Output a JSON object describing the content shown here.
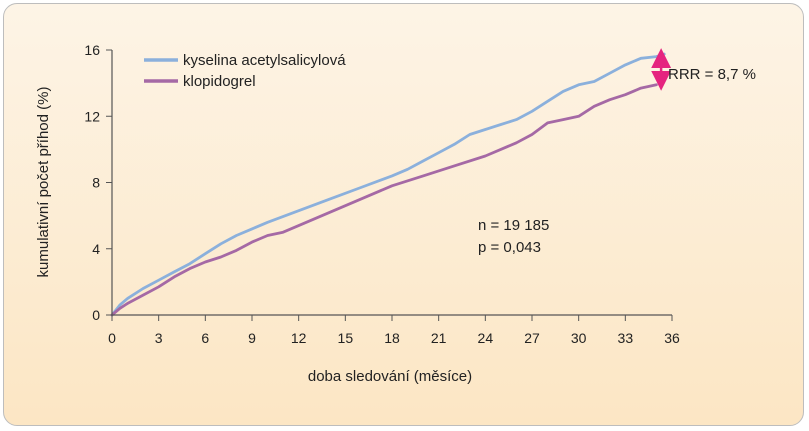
{
  "chart_data": {
    "type": "line",
    "xlabel": "doba sledování (měsíce)",
    "ylabel": "kumulativní počet příhod (%)",
    "xlim": [
      0,
      36
    ],
    "ylim": [
      0,
      16
    ],
    "xticks": [
      0,
      3,
      6,
      9,
      12,
      15,
      18,
      21,
      24,
      27,
      30,
      33,
      36
    ],
    "yticks": [
      0,
      4,
      8,
      12,
      16
    ],
    "legend_position": "top-left",
    "series": [
      {
        "name": "kyselina acetylsalicylová",
        "color": "#8bb0dc",
        "points": [
          [
            0,
            0
          ],
          [
            0.5,
            0.6
          ],
          [
            1,
            1.0
          ],
          [
            2,
            1.6
          ],
          [
            3,
            2.1
          ],
          [
            4,
            2.6
          ],
          [
            5,
            3.1
          ],
          [
            6,
            3.7
          ],
          [
            7,
            4.3
          ],
          [
            8,
            4.8
          ],
          [
            9,
            5.2
          ],
          [
            10,
            5.6
          ],
          [
            12,
            6.3
          ],
          [
            14,
            7.0
          ],
          [
            16,
            7.7
          ],
          [
            18,
            8.4
          ],
          [
            19,
            8.8
          ],
          [
            20,
            9.3
          ],
          [
            21,
            9.8
          ],
          [
            22,
            10.3
          ],
          [
            23,
            10.9
          ],
          [
            24,
            11.2
          ],
          [
            25,
            11.5
          ],
          [
            26,
            11.8
          ],
          [
            27,
            12.3
          ],
          [
            28,
            12.9
          ],
          [
            29,
            13.5
          ],
          [
            30,
            13.9
          ],
          [
            31,
            14.1
          ],
          [
            32,
            14.6
          ],
          [
            33,
            15.1
          ],
          [
            34,
            15.5
          ],
          [
            35,
            15.6
          ],
          [
            35.5,
            15.75
          ]
        ]
      },
      {
        "name": "klopidogrel",
        "color": "#a569a5",
        "points": [
          [
            0,
            0
          ],
          [
            0.5,
            0.4
          ],
          [
            1,
            0.7
          ],
          [
            2,
            1.2
          ],
          [
            3,
            1.7
          ],
          [
            4,
            2.3
          ],
          [
            5,
            2.8
          ],
          [
            6,
            3.2
          ],
          [
            7,
            3.5
          ],
          [
            8,
            3.9
          ],
          [
            9,
            4.4
          ],
          [
            10,
            4.8
          ],
          [
            11,
            5.0
          ],
          [
            12,
            5.4
          ],
          [
            14,
            6.2
          ],
          [
            16,
            7.0
          ],
          [
            18,
            7.8
          ],
          [
            20,
            8.4
          ],
          [
            22,
            9.0
          ],
          [
            24,
            9.6
          ],
          [
            26,
            10.4
          ],
          [
            27,
            10.9
          ],
          [
            28,
            11.6
          ],
          [
            29,
            11.8
          ],
          [
            30,
            12.0
          ],
          [
            31,
            12.6
          ],
          [
            32,
            13.0
          ],
          [
            33,
            13.3
          ],
          [
            34,
            13.7
          ],
          [
            35,
            13.9
          ]
        ]
      }
    ],
    "annotations": {
      "rrr": "RRR = 8,7 %",
      "n": "n = 19 185",
      "p": "p = 0,043"
    },
    "rrr_arrow": {
      "x": 35.3,
      "y_from": 13.9,
      "y_to": 15.75,
      "color": "#e5247f"
    }
  }
}
